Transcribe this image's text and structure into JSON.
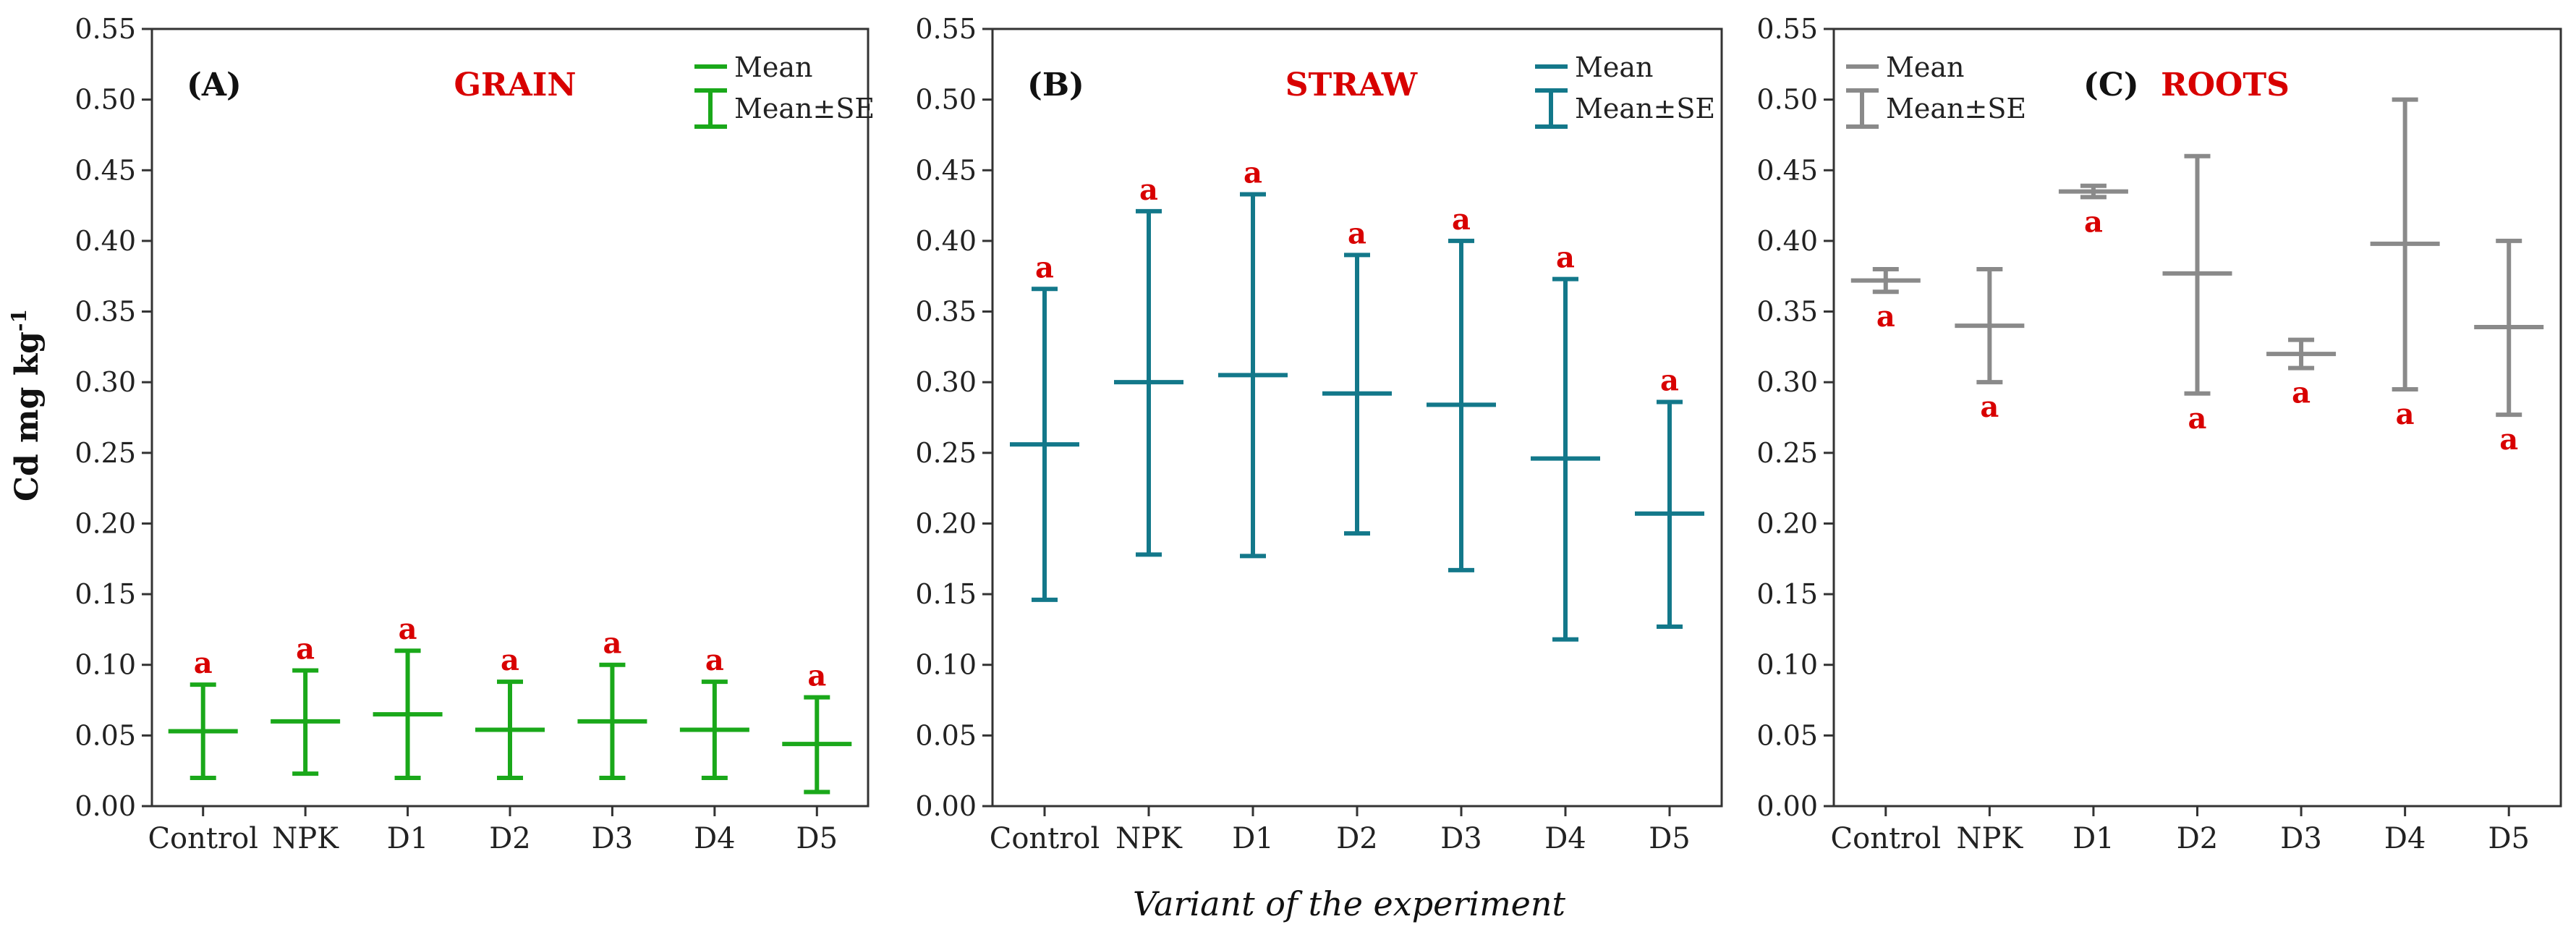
{
  "figure": {
    "ylabel_main": "Cd mg kg",
    "ylabel_sup": "-1",
    "xlabel": "Variant of the experiment"
  },
  "legend": {
    "mean": "Mean",
    "se": "Mean±SE"
  },
  "chart_data": [
    {
      "type": "errorbar",
      "panel_label": "(A)",
      "title": "GRAIN",
      "color": "#1aa81a",
      "legend_position": "top-right",
      "categories": [
        "Control",
        "NPK",
        "D1",
        "D2",
        "D3",
        "D4",
        "D5"
      ],
      "mean": [
        0.053,
        0.06,
        0.065,
        0.054,
        0.06,
        0.054,
        0.044
      ],
      "lower": [
        0.02,
        0.023,
        0.02,
        0.02,
        0.02,
        0.02,
        0.01
      ],
      "upper": [
        0.086,
        0.096,
        0.11,
        0.088,
        0.1,
        0.088,
        0.077
      ],
      "labels": [
        "a",
        "a",
        "a",
        "a",
        "a",
        "a",
        "a"
      ],
      "label_position": "above",
      "ylim": [
        0,
        0.55
      ],
      "yticks": [
        "0.00",
        "0.05",
        "0.10",
        "0.15",
        "0.20",
        "0.25",
        "0.30",
        "0.35",
        "0.40",
        "0.45",
        "0.50",
        "0.55"
      ]
    },
    {
      "type": "errorbar",
      "panel_label": "(B)",
      "title": "STRAW",
      "color": "#13788a",
      "legend_position": "top-right",
      "categories": [
        "Control",
        "NPK",
        "D1",
        "D2",
        "D3",
        "D4",
        "D5"
      ],
      "mean": [
        0.256,
        0.3,
        0.305,
        0.292,
        0.284,
        0.246,
        0.207
      ],
      "lower": [
        0.146,
        0.178,
        0.177,
        0.193,
        0.167,
        0.118,
        0.127
      ],
      "upper": [
        0.366,
        0.421,
        0.433,
        0.39,
        0.4,
        0.373,
        0.286
      ],
      "labels": [
        "a",
        "a",
        "a",
        "a",
        "a",
        "a",
        "a"
      ],
      "label_position": "above",
      "ylim": [
        0,
        0.55
      ],
      "yticks": [
        "0.00",
        "0.05",
        "0.10",
        "0.15",
        "0.20",
        "0.25",
        "0.30",
        "0.35",
        "0.40",
        "0.45",
        "0.50",
        "0.55"
      ]
    },
    {
      "type": "errorbar",
      "panel_label": "(C)",
      "title": "ROOTS",
      "color": "#8a8a8a",
      "legend_position": "top-left",
      "categories": [
        "Control",
        "NPK",
        "D1",
        "D2",
        "D3",
        "D4",
        "D5"
      ],
      "mean": [
        0.372,
        0.34,
        0.435,
        0.377,
        0.32,
        0.398,
        0.339
      ],
      "lower": [
        0.364,
        0.3,
        0.431,
        0.292,
        0.31,
        0.295,
        0.277
      ],
      "upper": [
        0.38,
        0.38,
        0.439,
        0.46,
        0.33,
        0.5,
        0.4
      ],
      "labels": [
        "a",
        "a",
        "a",
        "a",
        "a",
        "a",
        "a"
      ],
      "label_position": "below",
      "ylim": [
        0,
        0.55
      ],
      "yticks": [
        "0.00",
        "0.05",
        "0.10",
        "0.15",
        "0.20",
        "0.25",
        "0.30",
        "0.35",
        "0.40",
        "0.45",
        "0.50",
        "0.55"
      ]
    }
  ]
}
